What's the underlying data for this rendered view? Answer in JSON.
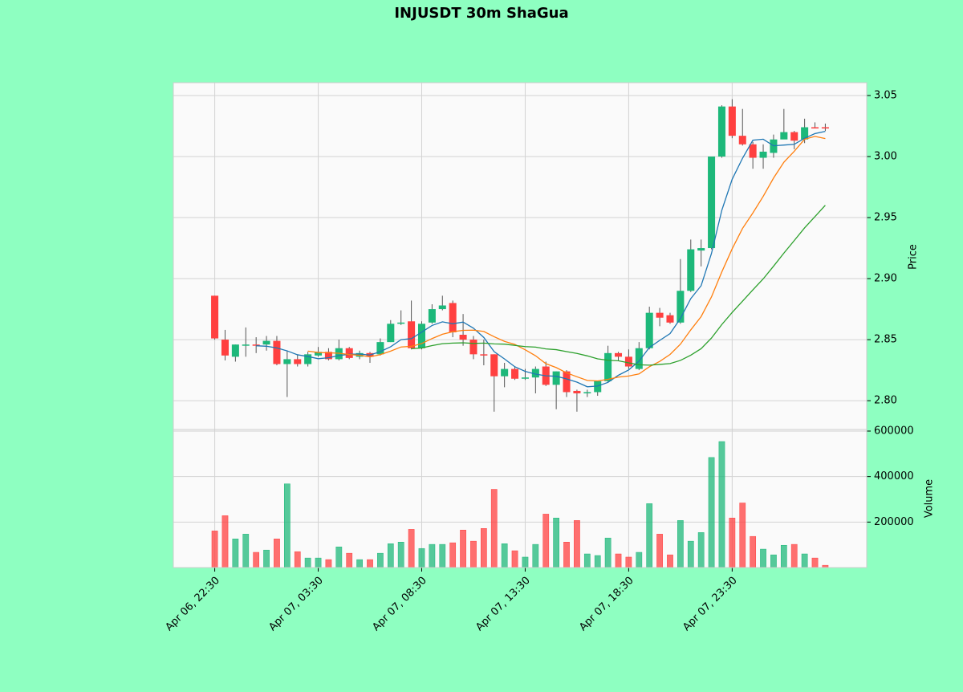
{
  "chart_data": {
    "type": "candlestick",
    "title": "INJUSDT 30m ShaGua",
    "ylabel": "Price",
    "volume_ylabel": "Volume",
    "up_color": "#1db87a",
    "down_color": "#ff4040",
    "grid": true,
    "xlim": [
      -4,
      63
    ],
    "xticks": [
      {
        "value": 0,
        "label": "Apr 06, 22:30"
      },
      {
        "value": 10,
        "label": "Apr 07, 03:30"
      },
      {
        "value": 20,
        "label": "Apr 07, 08:30"
      },
      {
        "value": 30,
        "label": "Apr 07, 13:30"
      },
      {
        "value": 40,
        "label": "Apr 07, 18:30"
      },
      {
        "value": 50,
        "label": "Apr 07, 23:30"
      }
    ],
    "ylim": [
      2.7764,
      3.0605
    ],
    "yticks": [
      {
        "value": 2.8,
        "label": "2.80"
      },
      2.85,
      {
        "value": 2.9,
        "label": "2.90"
      },
      2.95,
      {
        "value": 3.0,
        "label": "3.00"
      },
      3.05
    ],
    "volume_ylim": [
      0,
      607000
    ],
    "volume_yticks": [
      200000,
      400000,
      600000
    ],
    "open": [
      2.886,
      2.85,
      2.836,
      2.845,
      2.846,
      2.846,
      2.849,
      2.83,
      2.834,
      2.83,
      2.837,
      2.84,
      2.834,
      2.843,
      2.836,
      2.839,
      2.838,
      2.848,
      2.863,
      2.865,
      2.843,
      2.864,
      2.875,
      2.88,
      2.854,
      2.85,
      2.838,
      2.838,
      2.82,
      2.826,
      2.818,
      2.819,
      2.828,
      2.813,
      2.824,
      2.808,
      2.806,
      2.807,
      2.816,
      2.839,
      2.836,
      2.826,
      2.843,
      2.872,
      2.87,
      2.864,
      2.89,
      2.923,
      2.925,
      3.0,
      3.041,
      3.017,
      3.01,
      2.999,
      3.003,
      3.014,
      3.02,
      3.014,
      3.024,
      3.024
    ],
    "high": [
      2.886,
      2.858,
      2.846,
      2.86,
      2.852,
      2.853,
      2.853,
      2.841,
      2.838,
      2.84,
      2.844,
      2.843,
      2.85,
      2.844,
      2.841,
      2.84,
      2.851,
      2.866,
      2.874,
      2.882,
      2.865,
      2.879,
      2.886,
      2.882,
      2.871,
      2.853,
      2.85,
      2.838,
      2.831,
      2.828,
      2.826,
      2.828,
      2.832,
      2.824,
      2.825,
      2.809,
      2.809,
      2.816,
      2.845,
      2.84,
      2.842,
      2.848,
      2.877,
      2.876,
      2.872,
      2.916,
      2.932,
      2.932,
      3.0,
      3.042,
      3.047,
      3.039,
      3.012,
      3.01,
      3.018,
      3.039,
      3.021,
      3.031,
      3.028,
      3.027
    ],
    "low": [
      2.85,
      2.833,
      2.832,
      2.836,
      2.839,
      2.841,
      2.829,
      2.803,
      2.828,
      2.828,
      2.836,
      2.833,
      2.833,
      2.834,
      2.834,
      2.831,
      2.837,
      2.848,
      2.862,
      2.842,
      2.842,
      2.863,
      2.874,
      2.852,
      2.845,
      2.834,
      2.829,
      2.791,
      2.811,
      2.817,
      2.817,
      2.806,
      2.812,
      2.793,
      2.803,
      2.791,
      2.803,
      2.804,
      2.815,
      2.833,
      2.826,
      2.825,
      2.842,
      2.861,
      2.863,
      2.863,
      2.889,
      2.91,
      2.924,
      2.999,
      3.015,
      3.009,
      2.99,
      2.99,
      2.999,
      3.015,
      3.006,
      3.011,
      3.023,
      3.021
    ],
    "close": [
      2.851,
      2.837,
      2.846,
      2.846,
      2.845,
      2.849,
      2.83,
      2.834,
      2.83,
      2.838,
      2.84,
      2.834,
      2.843,
      2.835,
      2.839,
      2.836,
      2.848,
      2.863,
      2.864,
      2.843,
      2.863,
      2.875,
      2.878,
      2.856,
      2.85,
      2.838,
      2.837,
      2.82,
      2.826,
      2.818,
      2.819,
      2.826,
      2.813,
      2.824,
      2.807,
      2.806,
      2.807,
      2.816,
      2.839,
      2.836,
      2.828,
      2.843,
      2.872,
      2.868,
      2.864,
      2.89,
      2.924,
      2.925,
      3.0,
      3.041,
      3.017,
      3.01,
      2.999,
      3.004,
      3.014,
      3.02,
      3.013,
      3.024,
      3.023,
      3.023
    ],
    "volume": [
      161000,
      228000,
      126000,
      147000,
      67000,
      77000,
      126000,
      368000,
      70000,
      42000,
      42000,
      35000,
      91000,
      63000,
      35000,
      35000,
      63000,
      105000,
      112000,
      168000,
      84000,
      102000,
      102000,
      109000,
      165000,
      116000,
      172000,
      344000,
      105000,
      74000,
      46000,
      102000,
      235000,
      218000,
      112000,
      207000,
      60000,
      53000,
      130000,
      60000,
      46000,
      67000,
      281000,
      147000,
      56000,
      207000,
      116000,
      154000,
      484000,
      554000,
      218000,
      284000,
      137000,
      81000,
      56000,
      98000,
      102000,
      60000,
      42000,
      10000
    ],
    "moving_averages": [
      {
        "color": "#1f77b4",
        "values": [
          null,
          null,
          null,
          null,
          2.845,
          2.8446,
          2.8432,
          2.8408,
          2.8376,
          2.8362,
          2.8344,
          2.8352,
          2.837,
          2.838,
          2.8382,
          2.8374,
          2.8402,
          2.8442,
          2.85,
          2.8508,
          2.8562,
          2.8616,
          2.8646,
          2.863,
          2.8644,
          2.8594,
          2.8518,
          2.8402,
          2.8342,
          2.8278,
          2.824,
          2.8218,
          2.8204,
          2.82,
          2.8178,
          2.8152,
          2.8114,
          2.812,
          2.815,
          2.8208,
          2.8252,
          2.8324,
          2.8436,
          2.8494,
          2.855,
          2.8674,
          2.8836,
          2.8942,
          2.9206,
          2.956,
          2.9814,
          2.9986,
          3.0134,
          3.0142,
          3.0088,
          3.0094,
          3.01,
          3.015,
          3.0188,
          3.0206
        ]
      },
      {
        "color": "#ff7f0e",
        "values": [
          null,
          null,
          null,
          null,
          null,
          null,
          null,
          null,
          null,
          2.8406,
          2.8395,
          2.8392,
          2.8389,
          2.8378,
          2.8372,
          2.8359,
          2.8377,
          2.8406,
          2.844,
          2.8445,
          2.8468,
          2.8509,
          2.8544,
          2.8565,
          2.8576,
          2.8578,
          2.8567,
          2.8524,
          2.8486,
          2.8461,
          2.8417,
          2.8368,
          2.8303,
          2.8271,
          2.8228,
          2.8196,
          2.8166,
          2.8162,
          2.8175,
          2.8193,
          2.8202,
          2.8219,
          2.8278,
          2.8322,
          2.8379,
          2.8463,
          2.858,
          2.8689,
          2.885,
          2.9055,
          2.9244,
          2.9411,
          2.9538,
          2.9674,
          2.9824,
          2.9954,
          3.0043,
          3.0142,
          3.0165,
          3.0147
        ]
      },
      {
        "color": "#2ca02c",
        "values": [
          null,
          null,
          null,
          null,
          null,
          null,
          null,
          null,
          null,
          null,
          null,
          null,
          null,
          null,
          null,
          null,
          null,
          null,
          null,
          2.8426,
          2.8432,
          2.8451,
          2.8467,
          2.8472,
          2.8474,
          2.8469,
          2.8472,
          2.8465,
          2.8463,
          2.8453,
          2.8443,
          2.8439,
          2.8424,
          2.8418,
          2.8402,
          2.8387,
          2.8367,
          2.8343,
          2.8331,
          2.8327,
          2.831,
          2.8294,
          2.8291,
          2.8297,
          2.8304,
          2.833,
          2.8373,
          2.8426,
          2.8513,
          2.8624,
          2.8723,
          2.8815,
          2.8908,
          2.8998,
          2.9102,
          2.9209,
          2.9312,
          2.9416,
          2.9508,
          2.9601
        ]
      }
    ]
  }
}
